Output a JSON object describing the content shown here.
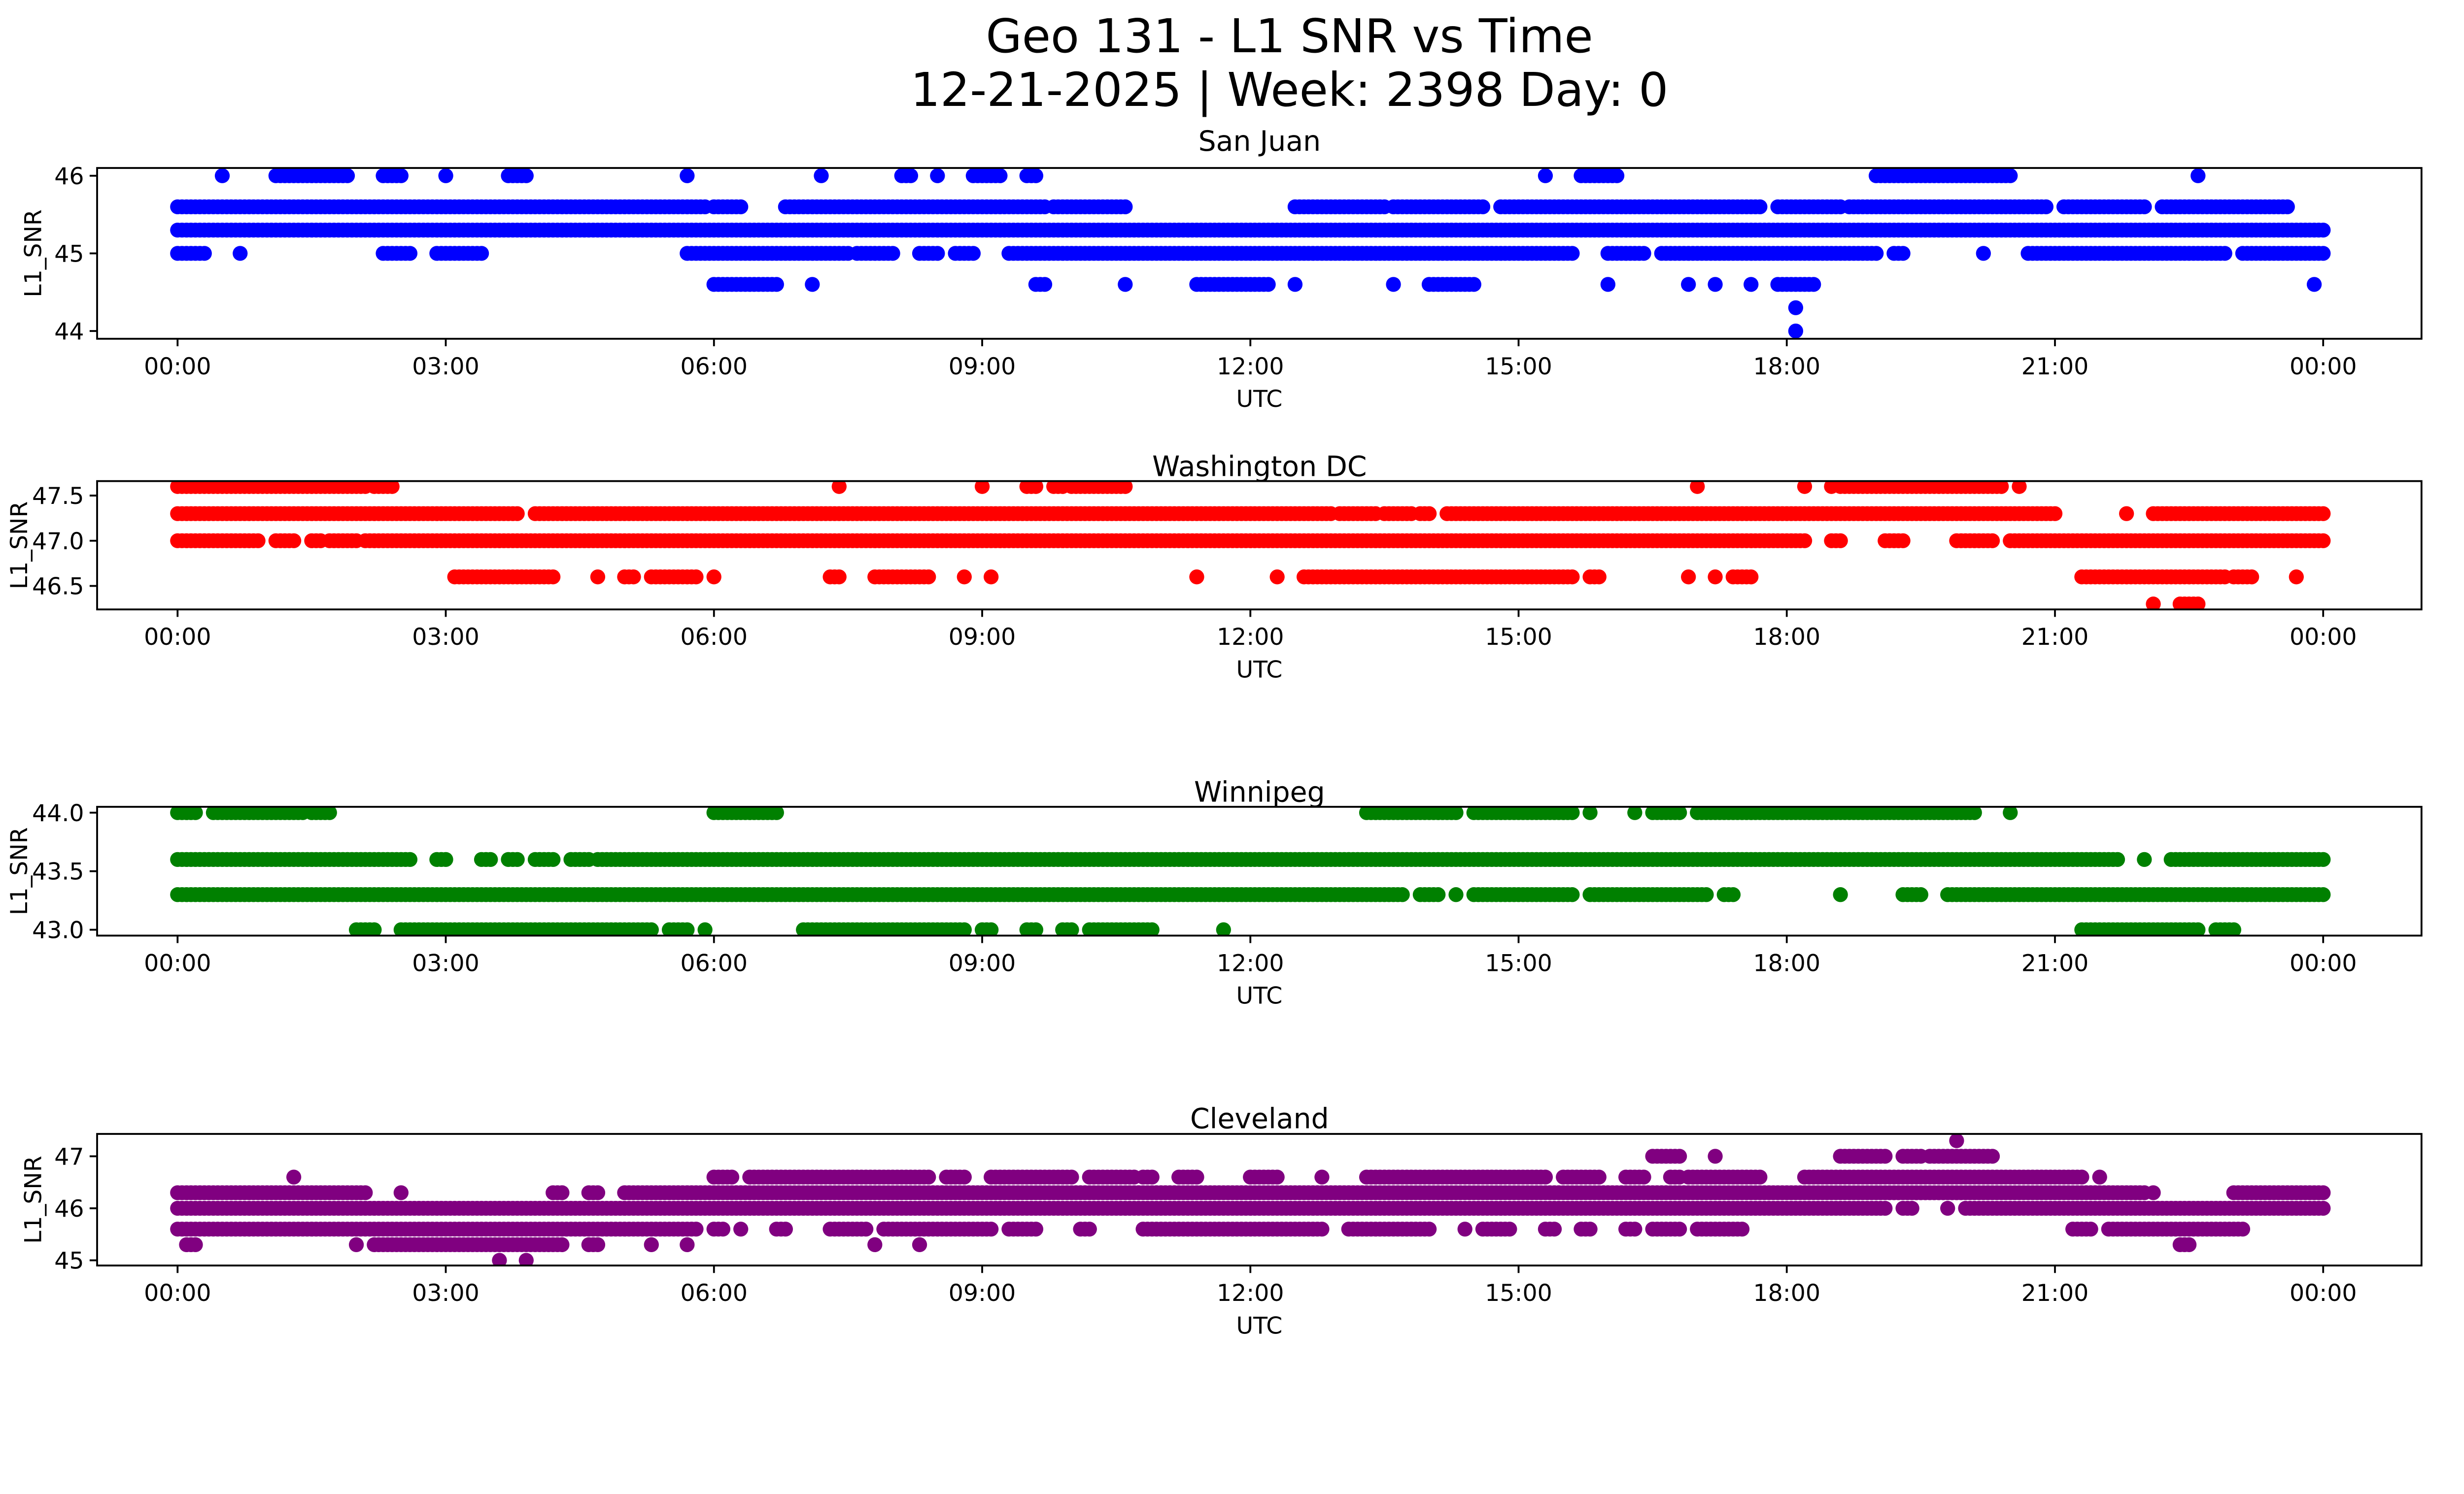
{
  "figure": {
    "title_line1": "Geo 131 - L1 SNR vs Time",
    "title_line2": "12-21-2025 | Week: 2398 Day: 0"
  },
  "chart_data": [
    {
      "type": "scatter",
      "title": "San Juan",
      "xlabel": "UTC",
      "ylabel": "L1_SNR",
      "color": "#0000ff",
      "xlim_hours": [
        -0.9,
        25.1
      ],
      "ylim": [
        43.9,
        46.1
      ],
      "xticks": [
        0,
        3,
        6,
        9,
        12,
        15,
        18,
        21,
        24
      ],
      "xtick_labels": [
        "00:00",
        "03:00",
        "06:00",
        "09:00",
        "12:00",
        "15:00",
        "18:00",
        "21:00",
        "00:00"
      ],
      "yticks": [
        44,
        45,
        46
      ],
      "ytick_labels": [
        "44",
        "45",
        "46"
      ],
      "grid": false,
      "x_unit": "hours UTC",
      "series": [
        {
          "value": 46.0,
          "runs": [
            [
              0.5,
              0.5
            ],
            [
              1.1,
              1.9
            ],
            [
              2.3,
              2.5
            ],
            [
              3.0,
              3.0
            ],
            [
              3.7,
              3.9
            ],
            [
              5.7,
              5.7
            ],
            [
              7.2,
              7.2
            ],
            [
              8.1,
              8.2
            ],
            [
              8.5,
              8.5
            ],
            [
              8.9,
              9.2
            ],
            [
              9.5,
              9.6
            ],
            [
              15.3,
              15.3
            ],
            [
              15.7,
              16.1
            ],
            [
              19.0,
              20.5
            ],
            [
              22.6,
              22.6
            ]
          ]
        },
        {
          "value": 45.6,
          "runs": [
            [
              0.0,
              5.9
            ],
            [
              6.0,
              6.3
            ],
            [
              6.8,
              9.7
            ],
            [
              9.8,
              10.6
            ],
            [
              12.5,
              13.5
            ],
            [
              13.6,
              14.6
            ],
            [
              14.8,
              17.7
            ],
            [
              17.9,
              18.6
            ],
            [
              18.7,
              20.9
            ],
            [
              21.1,
              22.0
            ],
            [
              22.2,
              23.6
            ]
          ]
        },
        {
          "value": 45.3,
          "runs": [
            [
              0.0,
              24.0
            ]
          ]
        },
        {
          "value": 45.0,
          "runs": [
            [
              0.0,
              0.3
            ],
            [
              0.7,
              0.7
            ],
            [
              2.3,
              2.6
            ],
            [
              2.9,
              3.4
            ],
            [
              5.7,
              7.5
            ],
            [
              7.6,
              8.0
            ],
            [
              8.3,
              8.5
            ],
            [
              8.7,
              8.9
            ],
            [
              9.3,
              15.6
            ],
            [
              16.0,
              16.4
            ],
            [
              16.6,
              19.0
            ],
            [
              19.2,
              19.3
            ],
            [
              20.2,
              20.2
            ],
            [
              20.7,
              22.9
            ],
            [
              23.1,
              24.0
            ]
          ]
        },
        {
          "value": 44.6,
          "runs": [
            [
              6.0,
              6.7
            ],
            [
              7.1,
              7.1
            ],
            [
              9.6,
              9.7
            ],
            [
              10.6,
              10.6
            ],
            [
              11.4,
              12.2
            ],
            [
              12.5,
              12.5
            ],
            [
              13.6,
              13.6
            ],
            [
              14.0,
              14.5
            ],
            [
              16.0,
              16.0
            ],
            [
              16.9,
              16.9
            ],
            [
              17.2,
              17.2
            ],
            [
              17.6,
              17.6
            ],
            [
              17.9,
              18.3
            ],
            [
              23.9,
              23.9
            ]
          ]
        },
        {
          "value": 44.3,
          "runs": [
            [
              18.1,
              18.1
            ]
          ]
        },
        {
          "value": 44.0,
          "runs": [
            [
              18.1,
              18.1
            ]
          ]
        }
      ]
    },
    {
      "type": "scatter",
      "title": "Washington DC",
      "xlabel": "UTC",
      "ylabel": "L1_SNR",
      "color": "#ff0000",
      "xlim_hours": [
        -0.9,
        25.1
      ],
      "ylim": [
        46.24,
        47.66
      ],
      "xticks": [
        0,
        3,
        6,
        9,
        12,
        15,
        18,
        21,
        24
      ],
      "xtick_labels": [
        "00:00",
        "03:00",
        "06:00",
        "09:00",
        "12:00",
        "15:00",
        "18:00",
        "21:00",
        "00:00"
      ],
      "yticks": [
        46.5,
        47.0,
        47.5
      ],
      "ytick_labels": [
        "46.5",
        "47.0",
        "47.5"
      ],
      "grid": false,
      "x_unit": "hours UTC",
      "series": [
        {
          "value": 47.6,
          "runs": [
            [
              0.0,
              2.1
            ],
            [
              2.2,
              2.4
            ],
            [
              7.4,
              7.4
            ],
            [
              9.0,
              9.0
            ],
            [
              9.5,
              9.6
            ],
            [
              9.8,
              9.9
            ],
            [
              10.0,
              10.6
            ],
            [
              17.0,
              17.0
            ],
            [
              18.2,
              18.2
            ],
            [
              18.5,
              18.5
            ],
            [
              18.6,
              20.4
            ],
            [
              20.6,
              20.6
            ]
          ]
        },
        {
          "value": 47.3,
          "runs": [
            [
              0.0,
              3.8
            ],
            [
              4.0,
              12.9
            ],
            [
              13.0,
              13.4
            ],
            [
              13.5,
              13.8
            ],
            [
              13.9,
              14.0
            ],
            [
              14.2,
              21.0
            ],
            [
              21.8,
              21.8
            ],
            [
              22.1,
              24.0
            ]
          ]
        },
        {
          "value": 47.0,
          "runs": [
            [
              0.0,
              0.9
            ],
            [
              1.1,
              1.3
            ],
            [
              1.5,
              1.6
            ],
            [
              1.7,
              2.0
            ],
            [
              2.1,
              18.2
            ],
            [
              18.5,
              18.6
            ],
            [
              19.1,
              19.3
            ],
            [
              19.9,
              20.3
            ],
            [
              20.5,
              24.0
            ]
          ]
        },
        {
          "value": 46.6,
          "runs": [
            [
              3.1,
              4.2
            ],
            [
              4.7,
              4.7
            ],
            [
              5.0,
              5.1
            ],
            [
              5.3,
              5.8
            ],
            [
              6.0,
              6.0
            ],
            [
              7.3,
              7.4
            ],
            [
              7.8,
              8.4
            ],
            [
              8.8,
              8.8
            ],
            [
              9.1,
              9.1
            ],
            [
              11.4,
              11.4
            ],
            [
              12.3,
              12.3
            ],
            [
              12.6,
              15.6
            ],
            [
              15.8,
              15.9
            ],
            [
              16.9,
              16.9
            ],
            [
              17.2,
              17.2
            ],
            [
              17.4,
              17.6
            ],
            [
              21.3,
              22.9
            ],
            [
              23.0,
              23.2
            ],
            [
              23.7,
              23.7
            ]
          ]
        },
        {
          "value": 46.3,
          "runs": [
            [
              22.1,
              22.1
            ],
            [
              22.4,
              22.6
            ]
          ]
        }
      ]
    },
    {
      "type": "scatter",
      "title": "Winnipeg",
      "xlabel": "UTC",
      "ylabel": "L1_SNR",
      "color": "#008000",
      "xlim_hours": [
        -0.9,
        25.1
      ],
      "ylim": [
        42.95,
        44.05
      ],
      "xticks": [
        0,
        3,
        6,
        9,
        12,
        15,
        18,
        21,
        24
      ],
      "xtick_labels": [
        "00:00",
        "03:00",
        "06:00",
        "09:00",
        "12:00",
        "15:00",
        "18:00",
        "21:00",
        "00:00"
      ],
      "yticks": [
        43.0,
        43.5,
        44.0
      ],
      "ytick_labels": [
        "43.0",
        "43.5",
        "44.0"
      ],
      "grid": false,
      "x_unit": "hours UTC",
      "series": [
        {
          "value": 44.0,
          "runs": [
            [
              0.0,
              0.2
            ],
            [
              0.4,
              1.4
            ],
            [
              1.5,
              1.7
            ],
            [
              6.0,
              6.7
            ],
            [
              13.3,
              14.3
            ],
            [
              14.5,
              15.6
            ],
            [
              15.8,
              15.8
            ],
            [
              16.3,
              16.3
            ],
            [
              16.5,
              16.8
            ],
            [
              17.0,
              20.1
            ],
            [
              20.5,
              20.5
            ]
          ]
        },
        {
          "value": 43.6,
          "runs": [
            [
              0.0,
              2.6
            ],
            [
              2.9,
              3.0
            ],
            [
              3.4,
              3.5
            ],
            [
              3.7,
              3.8
            ],
            [
              4.0,
              4.2
            ],
            [
              4.4,
              4.6
            ],
            [
              4.7,
              21.7
            ],
            [
              22.0,
              22.0
            ],
            [
              22.3,
              24.0
            ]
          ]
        },
        {
          "value": 43.3,
          "runs": [
            [
              0.0,
              13.7
            ],
            [
              13.9,
              14.1
            ],
            [
              14.3,
              14.3
            ],
            [
              14.5,
              15.6
            ],
            [
              15.8,
              17.1
            ],
            [
              17.3,
              17.4
            ],
            [
              18.6,
              18.6
            ],
            [
              19.3,
              19.5
            ],
            [
              19.8,
              24.0
            ]
          ]
        },
        {
          "value": 43.0,
          "runs": [
            [
              2.0,
              2.2
            ],
            [
              2.5,
              5.3
            ],
            [
              5.5,
              5.7
            ],
            [
              5.9,
              5.9
            ],
            [
              7.0,
              8.8
            ],
            [
              9.0,
              9.1
            ],
            [
              9.5,
              9.6
            ],
            [
              9.9,
              10.0
            ],
            [
              10.2,
              10.9
            ],
            [
              11.7,
              11.7
            ],
            [
              21.3,
              22.6
            ],
            [
              22.8,
              23.0
            ]
          ]
        }
      ]
    },
    {
      "type": "scatter",
      "title": "Cleveland",
      "xlabel": "UTC",
      "ylabel": "L1_SNR",
      "color": "#800080",
      "xlim_hours": [
        -0.9,
        25.1
      ],
      "ylim": [
        44.9,
        47.43
      ],
      "xticks": [
        0,
        3,
        6,
        9,
        12,
        15,
        18,
        21,
        24
      ],
      "xtick_labels": [
        "00:00",
        "03:00",
        "06:00",
        "09:00",
        "12:00",
        "15:00",
        "18:00",
        "21:00",
        "00:00"
      ],
      "yticks": [
        45,
        46,
        47
      ],
      "ytick_labels": [
        "45",
        "46",
        "47"
      ],
      "grid": false,
      "x_unit": "hours UTC",
      "series": [
        {
          "value": 47.3,
          "runs": [
            [
              19.9,
              19.9
            ]
          ]
        },
        {
          "value": 47.0,
          "runs": [
            [
              16.5,
              16.8
            ],
            [
              17.2,
              17.2
            ],
            [
              18.6,
              19.1
            ],
            [
              19.3,
              19.5
            ],
            [
              19.6,
              20.3
            ]
          ]
        },
        {
          "value": 46.6,
          "runs": [
            [
              1.3,
              1.3
            ],
            [
              6.0,
              6.2
            ],
            [
              6.4,
              8.4
            ],
            [
              8.6,
              8.8
            ],
            [
              9.1,
              10.0
            ],
            [
              10.2,
              10.7
            ],
            [
              10.8,
              10.9
            ],
            [
              11.2,
              11.4
            ],
            [
              12.0,
              12.3
            ],
            [
              12.8,
              12.8
            ],
            [
              13.3,
              15.3
            ],
            [
              15.5,
              15.9
            ],
            [
              16.2,
              16.4
            ],
            [
              16.7,
              16.8
            ],
            [
              16.9,
              17.7
            ],
            [
              18.2,
              21.3
            ],
            [
              21.5,
              21.5
            ]
          ]
        },
        {
          "value": 46.3,
          "runs": [
            [
              0.0,
              2.1
            ],
            [
              2.5,
              2.5
            ],
            [
              4.2,
              4.3
            ],
            [
              4.6,
              4.7
            ],
            [
              5.0,
              22.0
            ],
            [
              22.1,
              22.1
            ],
            [
              23.0,
              24.0
            ]
          ]
        },
        {
          "value": 46.0,
          "runs": [
            [
              0.0,
              19.1
            ],
            [
              19.3,
              19.4
            ],
            [
              19.8,
              19.8
            ],
            [
              20.0,
              24.0
            ]
          ]
        },
        {
          "value": 45.6,
          "runs": [
            [
              0.0,
              5.8
            ],
            [
              6.0,
              6.1
            ],
            [
              6.3,
              6.3
            ],
            [
              6.7,
              6.8
            ],
            [
              7.3,
              7.7
            ],
            [
              7.9,
              9.1
            ],
            [
              9.3,
              9.6
            ],
            [
              10.1,
              10.2
            ],
            [
              10.8,
              12.8
            ],
            [
              13.1,
              14.0
            ],
            [
              14.4,
              14.4
            ],
            [
              14.6,
              14.9
            ],
            [
              15.3,
              15.4
            ],
            [
              15.7,
              15.8
            ],
            [
              16.2,
              16.3
            ],
            [
              16.5,
              16.8
            ],
            [
              17.0,
              17.5
            ],
            [
              21.2,
              21.4
            ],
            [
              21.6,
              23.1
            ]
          ]
        },
        {
          "value": 45.3,
          "runs": [
            [
              0.1,
              0.2
            ],
            [
              2.0,
              2.0
            ],
            [
              2.2,
              4.3
            ],
            [
              4.6,
              4.7
            ],
            [
              5.3,
              5.3
            ],
            [
              5.7,
              5.7
            ],
            [
              7.8,
              7.8
            ],
            [
              8.3,
              8.3
            ],
            [
              22.4,
              22.5
            ]
          ]
        },
        {
          "value": 45.0,
          "runs": [
            [
              3.6,
              3.6
            ],
            [
              3.9,
              3.9
            ]
          ]
        }
      ]
    }
  ]
}
